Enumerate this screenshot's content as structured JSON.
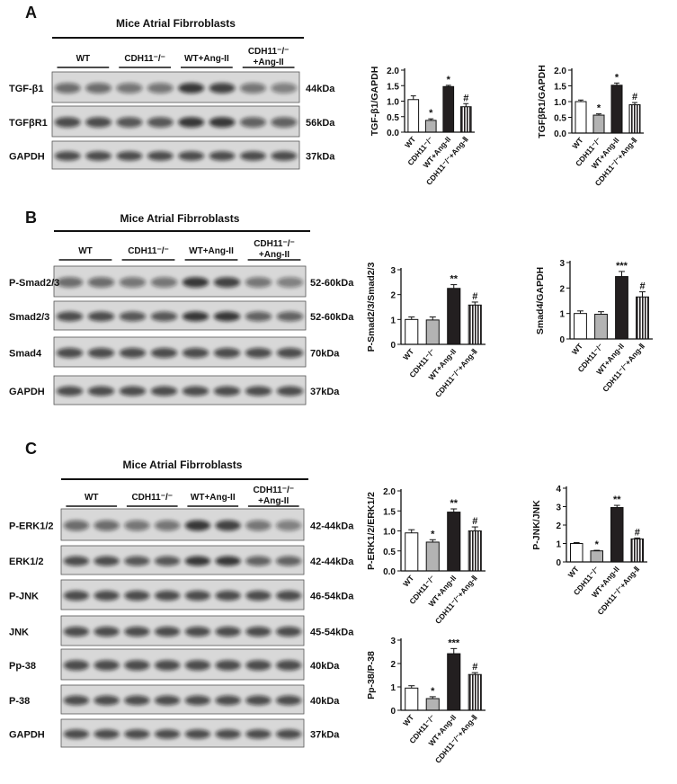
{
  "panels": [
    {
      "label": "A",
      "title": "Mice Atrial Fibrroblasts",
      "groups": [
        [
          "WT"
        ],
        [
          "CDH11⁻/⁻"
        ],
        [
          "WT+Ang-II"
        ],
        [
          "CDH11⁻/⁻",
          "+Ang-II"
        ]
      ],
      "rows": [
        {
          "name": "TGF-β1",
          "size": "44kDa"
        },
        {
          "name": "TGFβR1",
          "size": "56kDa"
        },
        {
          "name": "GAPDH",
          "size": "37kDa"
        }
      ]
    },
    {
      "label": "B",
      "title": "Mice Atrial Fibrroblasts",
      "groups": [
        [
          "WT"
        ],
        [
          "CDH11⁻/⁻"
        ],
        [
          "WT+Ang-II"
        ],
        [
          "CDH11⁻/⁻",
          "+Ang-II"
        ]
      ],
      "rows": [
        {
          "name": "P-Smad2/3",
          "size": "52-60kDa"
        },
        {
          "name": "Smad2/3",
          "size": "52-60kDa"
        },
        {
          "name": "Smad4",
          "size": "70kDa"
        },
        {
          "name": "GAPDH",
          "size": "37kDa"
        }
      ]
    },
    {
      "label": "C",
      "title": "Mice Atrial Fibrroblasts",
      "groups": [
        [
          "WT"
        ],
        [
          "CDH11⁻/⁻"
        ],
        [
          "WT+Ang-II"
        ],
        [
          "CDH11⁻/⁻",
          "+Ang-II"
        ]
      ],
      "rows": [
        {
          "name": "P-ERK1/2",
          "size": "42-44kDa"
        },
        {
          "name": "ERK1/2",
          "size": "42-44kDa"
        },
        {
          "name": "P-JNK",
          "size": "46-54kDa"
        },
        {
          "name": "JNK",
          "size": "45-54kDa"
        },
        {
          "name": "Pp-38",
          "size": "40kDa"
        },
        {
          "name": "P-38",
          "size": "40kDa"
        },
        {
          "name": "GAPDH",
          "size": "37kDa"
        }
      ]
    }
  ],
  "chart_data": [
    {
      "type": "bar",
      "ylabel": "TGF-β1/GAPDH",
      "categories": [
        "WT",
        "CDH11⁻/⁻",
        "WT+Ang-II",
        "CDH11⁻/⁻+Ang-Ⅱ"
      ],
      "values": [
        1.05,
        0.38,
        1.47,
        0.82
      ],
      "errors": [
        0.12,
        0.05,
        0.04,
        0.1
      ],
      "annotations": [
        null,
        "*",
        "*",
        "#"
      ],
      "fills": [
        "#ffffff",
        "#b3b3b3",
        "#231f20",
        "stripes"
      ],
      "ylim": [
        0,
        2
      ],
      "yticks": [
        {
          "value": 0,
          "label": "0.0"
        },
        {
          "value": 0.5,
          "label": "0.5"
        },
        {
          "value": 1,
          "label": "1.0"
        },
        {
          "value": 1.5,
          "label": "1.5"
        },
        {
          "value": 2,
          "label": "2.0"
        }
      ]
    },
    {
      "type": "bar",
      "ylabel": "TGFβR1/GAPDH",
      "categories": [
        "WT",
        "CDH11⁻/⁻",
        "WT+Ang-II",
        "CDH11⁻/⁻+Ang-Ⅱ"
      ],
      "values": [
        1.0,
        0.57,
        1.52,
        0.9
      ],
      "errors": [
        0.05,
        0.04,
        0.07,
        0.07
      ],
      "annotations": [
        null,
        "*",
        "*",
        "#"
      ],
      "fills": [
        "#ffffff",
        "#b3b3b3",
        "#231f20",
        "stripes"
      ],
      "ylim": [
        0,
        2
      ],
      "yticks": [
        {
          "value": 0,
          "label": "0.0"
        },
        {
          "value": 0.5,
          "label": "0.5"
        },
        {
          "value": 1,
          "label": "1.0"
        },
        {
          "value": 1.5,
          "label": "1.5"
        },
        {
          "value": 2,
          "label": "2.0"
        }
      ]
    },
    {
      "type": "bar",
      "ylabel": "P-Smad2/3/Smad2/3",
      "categories": [
        "WT",
        "CDH11⁻/⁻",
        "WT+Ang-II",
        "CDH11⁻/⁻+Ang-Ⅱ"
      ],
      "values": [
        1.0,
        0.98,
        2.25,
        1.58
      ],
      "errors": [
        0.1,
        0.12,
        0.15,
        0.12
      ],
      "annotations": [
        null,
        null,
        "**",
        "#"
      ],
      "fills": [
        "#ffffff",
        "#b3b3b3",
        "#231f20",
        "stripes"
      ],
      "ylim": [
        0,
        3
      ],
      "yticks": [
        0,
        1,
        2,
        3
      ]
    },
    {
      "type": "bar",
      "ylabel": "Smad4/GAPDH",
      "categories": [
        "WT",
        "CDH11⁻/⁻",
        "WT+Ang-II",
        "CDH11⁻/⁻+Ang-Ⅱ"
      ],
      "values": [
        1.0,
        0.97,
        2.45,
        1.65
      ],
      "errors": [
        0.1,
        0.1,
        0.2,
        0.2
      ],
      "annotations": [
        null,
        null,
        "***",
        "#"
      ],
      "fills": [
        "#ffffff",
        "#b3b3b3",
        "#231f20",
        "stripes"
      ],
      "ylim": [
        0,
        3
      ],
      "yticks": [
        0,
        1,
        2,
        3
      ]
    },
    {
      "type": "bar",
      "ylabel": "P-ERK1/2/ERK1/2",
      "categories": [
        "WT",
        "CDH11⁻/⁻",
        "WT+Ang-II",
        "CDH11⁻/⁻+Ang-Ⅱ"
      ],
      "values": [
        0.95,
        0.72,
        1.47,
        1.0
      ],
      "errors": [
        0.08,
        0.06,
        0.08,
        0.1
      ],
      "annotations": [
        null,
        "*",
        "**",
        "#"
      ],
      "fills": [
        "#ffffff",
        "#b3b3b3",
        "#231f20",
        "stripes"
      ],
      "ylim": [
        0,
        2
      ],
      "yticks": [
        {
          "value": 0,
          "label": "0.0"
        },
        {
          "value": 0.5,
          "label": "0.5"
        },
        {
          "value": 1,
          "label": "1.0"
        },
        {
          "value": 1.5,
          "label": "1.5"
        },
        {
          "value": 2,
          "label": "2.0"
        }
      ]
    },
    {
      "type": "bar",
      "ylabel": "P-JNK/JNK",
      "categories": [
        "WT",
        "CDH11⁻/⁻",
        "WT+Ang-II",
        "CDH11⁻/⁻+Ang-Ⅱ"
      ],
      "values": [
        1.0,
        0.6,
        2.95,
        1.25
      ],
      "errors": [
        0.05,
        0.03,
        0.12,
        0.05
      ],
      "annotations": [
        null,
        "*",
        "**",
        "#"
      ],
      "fills": [
        "#ffffff",
        "#b3b3b3",
        "#231f20",
        "stripes"
      ],
      "ylim": [
        0,
        4
      ],
      "yticks": [
        0,
        1,
        2,
        3,
        4
      ]
    },
    {
      "type": "bar",
      "ylabel": "Pp-38/P-38",
      "categories": [
        "WT",
        "CDH11⁻/⁻",
        "WT+Ang-II",
        "CDH11⁻/⁻+Ang-Ⅱ"
      ],
      "values": [
        0.95,
        0.5,
        2.42,
        1.53
      ],
      "errors": [
        0.1,
        0.08,
        0.22,
        0.08
      ],
      "annotations": [
        null,
        "*",
        "***",
        "#"
      ],
      "fills": [
        "#ffffff",
        "#b3b3b3",
        "#231f20",
        "stripes"
      ],
      "ylim": [
        0,
        3
      ],
      "yticks": [
        0,
        1,
        2,
        3
      ]
    }
  ]
}
